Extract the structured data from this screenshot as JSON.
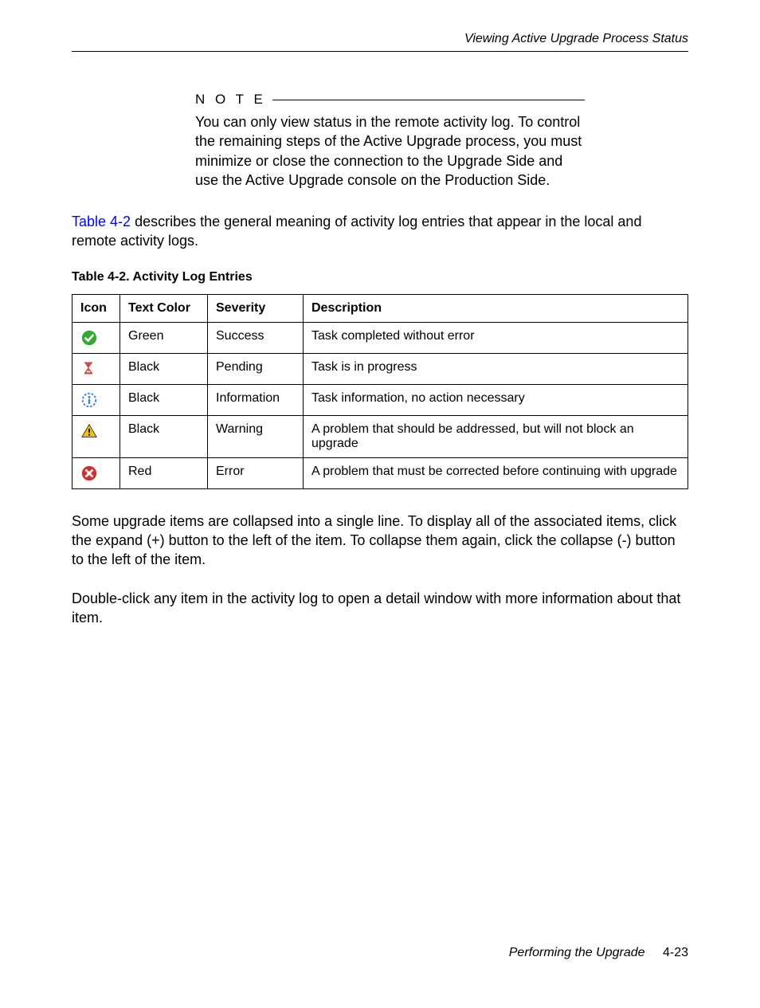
{
  "header": {
    "section_title": "Viewing Active Upgrade Process Status"
  },
  "note": {
    "label": "N O T E",
    "text": "You can only view status in the remote activity log. To control the remaining steps of the Active Upgrade process, you must minimize or close the connection to the Upgrade Side and use the Active Upgrade console on the Production Side."
  },
  "intro": {
    "link": "Table 4-2",
    "text_after": " describes the general meaning of activity log entries that appear in the local and remote activity logs."
  },
  "table": {
    "caption": "Table 4-2. Activity Log Entries",
    "headers": {
      "icon": "Icon",
      "text_color": "Text Color",
      "severity": "Severity",
      "description": "Description"
    },
    "rows": [
      {
        "text_color": "Green",
        "severity": "Success",
        "description": "Task completed without error",
        "icon_type": "success",
        "icon_color": "#33aa33"
      },
      {
        "text_color": "Black",
        "severity": "Pending",
        "description": "Task is in progress",
        "icon_type": "hourglass",
        "icon_color": "#cc4444"
      },
      {
        "text_color": "Black",
        "severity": "Information",
        "description": "Task information, no action necessary",
        "icon_type": "info",
        "icon_color": "#3a7fd5"
      },
      {
        "text_color": "Black",
        "severity": "Warning",
        "description": "A problem that should be addressed, but will not block an upgrade",
        "icon_type": "warning",
        "icon_color": "#f2c200"
      },
      {
        "text_color": "Red",
        "severity": "Error",
        "description": "A problem that must be corrected before continuing with upgrade",
        "icon_type": "error",
        "icon_color": "#d32f2f"
      }
    ]
  },
  "paragraphs": {
    "p1": "Some upgrade items are collapsed into a single line. To display all of the associated items, click the expand (+) button to the left of the item. To collapse them again, click the collapse (-) button to the left of the item.",
    "p2": "Double-click any item in the activity log to open a detail window with more information about that item."
  },
  "footer": {
    "title": "Performing the Upgrade",
    "page": "4-23"
  }
}
